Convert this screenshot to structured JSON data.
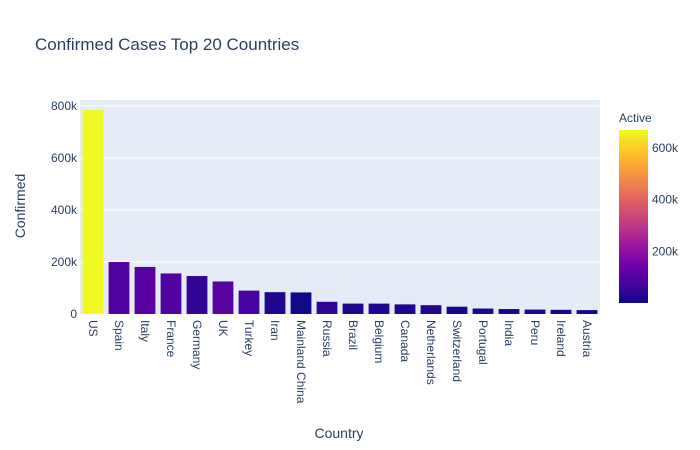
{
  "chart_data": {
    "type": "bar",
    "title": "Confirmed Cases Top 20 Countries",
    "xlabel": "Country",
    "ylabel": "Confirmed",
    "ylim": [
      0,
      800000
    ],
    "y_ticks": [
      0,
      200000,
      400000,
      600000,
      800000
    ],
    "y_tick_labels": [
      "0",
      "200k",
      "400k",
      "600k",
      "800k"
    ],
    "grid": true,
    "plot_background": "#e5ecf6",
    "categories": [
      "US",
      "Spain",
      "Italy",
      "France",
      "Germany",
      "UK",
      "Turkey",
      "Iran",
      "Mainland China",
      "Russia",
      "Brazil",
      "Belgium",
      "Canada",
      "Netherlands",
      "Switzerland",
      "Portugal",
      "India",
      "Peru",
      "Ireland",
      "Austria"
    ],
    "values": [
      784000,
      200000,
      181000,
      156000,
      146000,
      125000,
      90000,
      84000,
      83000,
      47000,
      40000,
      40000,
      37000,
      34000,
      28000,
      21000,
      19000,
      17000,
      16000,
      15000
    ],
    "active": [
      670000,
      95000,
      105000,
      95000,
      50000,
      110000,
      75000,
      25000,
      2000,
      43000,
      20000,
      25000,
      22000,
      30000,
      10000,
      18000,
      15000,
      15000,
      11000,
      4000
    ],
    "colorbar": {
      "title": "Active",
      "range": [
        0,
        670000
      ],
      "tick_values": [
        200000,
        400000,
        600000
      ],
      "tick_labels": [
        "200k",
        "400k",
        "600k"
      ],
      "colorscale": [
        "#0d0887",
        "#46039f",
        "#7201a8",
        "#9c179e",
        "#bd3786",
        "#d8576b",
        "#ed7953",
        "#fb9f3a",
        "#fdca26",
        "#f0f921"
      ]
    }
  }
}
